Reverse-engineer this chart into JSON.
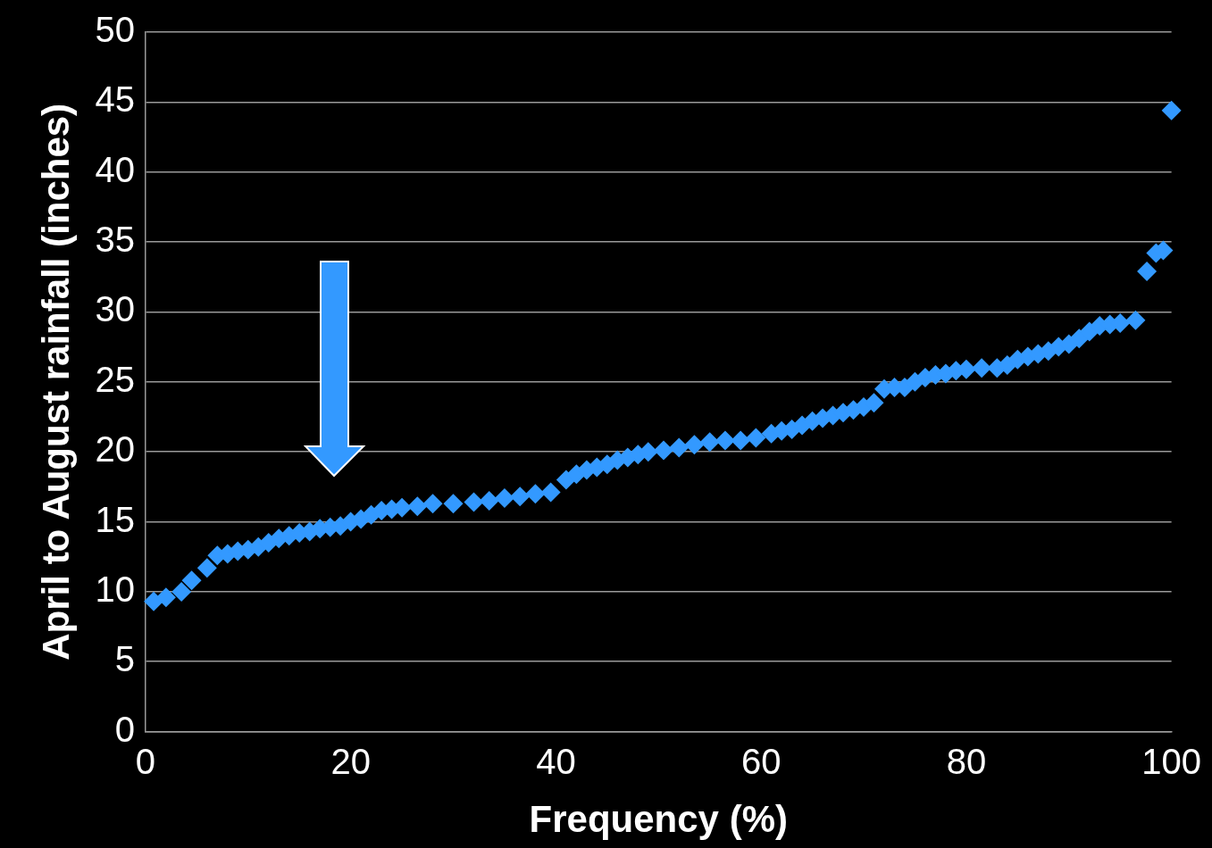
{
  "chart_data": {
    "type": "scatter",
    "xlabel": "Frequency (%)",
    "ylabel": "April to August rainfall (inches)",
    "series": [
      {
        "color": "#3399ff",
        "x": [
          0.8,
          2,
          3.5,
          4.5,
          6,
          7,
          8,
          9,
          10,
          11,
          12,
          13,
          14,
          15,
          16,
          17,
          18,
          19,
          20,
          21,
          22,
          23,
          24,
          25,
          26.5,
          28,
          30,
          32,
          33.5,
          35,
          36.5,
          38,
          39.5,
          41,
          42,
          43,
          44,
          45,
          46,
          47,
          48,
          49,
          50.5,
          52,
          53.5,
          55,
          56.5,
          58,
          59.5,
          61,
          62,
          63,
          64,
          65,
          66,
          67,
          68,
          69,
          70,
          71,
          72,
          73,
          74,
          75,
          76,
          77,
          78,
          79,
          80,
          81.5,
          83,
          84,
          85,
          86,
          87,
          88,
          89,
          90,
          91,
          92,
          93,
          94,
          95,
          96.5,
          97.6,
          98.5,
          99.2,
          100
        ],
        "values": [
          9.3,
          9.6,
          10.0,
          10.8,
          11.7,
          12.6,
          12.7,
          12.9,
          13.0,
          13.2,
          13.5,
          13.8,
          14.0,
          14.2,
          14.3,
          14.5,
          14.6,
          14.7,
          15.0,
          15.2,
          15.5,
          15.8,
          15.9,
          16.0,
          16.1,
          16.3,
          16.3,
          16.4,
          16.5,
          16.7,
          16.8,
          17.0,
          17.1,
          18.0,
          18.4,
          18.7,
          18.9,
          19.1,
          19.4,
          19.6,
          19.8,
          20.0,
          20.1,
          20.3,
          20.5,
          20.7,
          20.8,
          20.8,
          21.0,
          21.3,
          21.5,
          21.6,
          21.9,
          22.2,
          22.4,
          22.6,
          22.8,
          23.0,
          23.2,
          23.5,
          24.5,
          24.6,
          24.6,
          25.0,
          25.3,
          25.5,
          25.6,
          25.8,
          25.9,
          26.0,
          26.0,
          26.2,
          26.6,
          26.8,
          27.0,
          27.2,
          27.5,
          27.7,
          28.1,
          28.6,
          29.0,
          29.1,
          29.2,
          29.4,
          32.9,
          34.2,
          34.4,
          44.4
        ]
      }
    ],
    "xlim": [
      0,
      100
    ],
    "xticks": [
      0,
      20,
      40,
      60,
      80,
      100
    ],
    "ylim": [
      0,
      50
    ],
    "yticks": [
      0,
      5,
      10,
      15,
      20,
      25,
      30,
      35,
      40,
      45,
      50
    ],
    "grid": "y",
    "legend": false,
    "marker": "diamond"
  }
}
